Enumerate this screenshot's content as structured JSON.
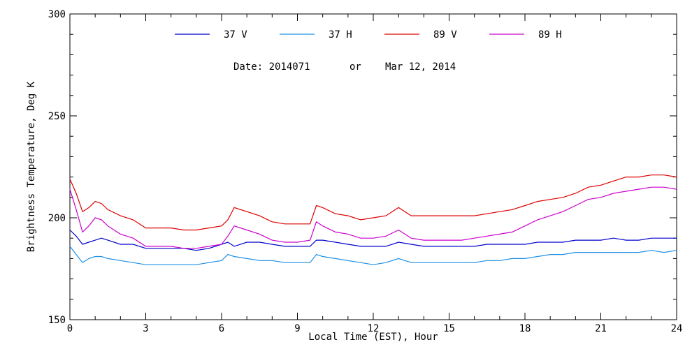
{
  "chart_data": {
    "type": "line",
    "xlabel": "Local Time (EST), Hour",
    "ylabel": "Brightness Temperature, Deg K",
    "xlim": [
      0,
      24
    ],
    "ylim": [
      150,
      300
    ],
    "xticks": [
      0,
      3,
      6,
      9,
      12,
      15,
      18,
      21,
      24
    ],
    "yticks": [
      150,
      200,
      250,
      300
    ],
    "grid": false,
    "legend_position": "top-center",
    "annotation": {
      "date_label": "Date: 2014071",
      "or_label": "or",
      "date_text": "Mar 12, 2014"
    },
    "x": [
      0,
      0.25,
      0.5,
      0.75,
      1,
      1.25,
      1.5,
      2,
      2.5,
      3,
      3.5,
      4,
      4.5,
      5,
      5.5,
      6,
      6.25,
      6.5,
      7,
      7.5,
      8,
      8.5,
      9,
      9.5,
      9.75,
      10,
      10.5,
      11,
      11.5,
      12,
      12.5,
      13,
      13.5,
      14,
      14.5,
      15,
      15.5,
      16,
      16.5,
      17,
      17.5,
      18,
      18.5,
      19,
      19.5,
      20,
      20.5,
      21,
      21.5,
      22,
      22.5,
      23,
      23.5,
      24
    ],
    "series": [
      {
        "name": "37 V",
        "color": "#0000cc",
        "values": [
          194,
          191,
          187,
          188,
          189,
          190,
          189,
          187,
          187,
          185,
          185,
          185,
          185,
          184,
          185,
          187,
          188,
          186,
          188,
          188,
          187,
          186,
          186,
          186,
          189,
          189,
          188,
          187,
          186,
          186,
          186,
          188,
          187,
          186,
          186,
          186,
          186,
          186,
          187,
          187,
          187,
          187,
          188,
          188,
          188,
          189,
          189,
          189,
          190,
          189,
          189,
          190,
          190,
          190
        ]
      },
      {
        "name": "37 H",
        "color": "#1e90e6",
        "values": [
          186,
          182,
          178,
          180,
          181,
          181,
          180,
          179,
          178,
          177,
          177,
          177,
          177,
          177,
          178,
          179,
          182,
          181,
          180,
          179,
          179,
          178,
          178,
          178,
          182,
          181,
          180,
          179,
          178,
          177,
          178,
          180,
          178,
          178,
          178,
          178,
          178,
          178,
          179,
          179,
          180,
          180,
          181,
          182,
          182,
          183,
          183,
          183,
          183,
          183,
          183,
          184,
          183,
          184
        ]
      },
      {
        "name": "89 V",
        "color": "#dd0000",
        "values": [
          219,
          212,
          203,
          205,
          208,
          207,
          204,
          201,
          199,
          195,
          195,
          195,
          194,
          194,
          195,
          196,
          199,
          205,
          203,
          201,
          198,
          197,
          197,
          197,
          206,
          205,
          202,
          201,
          199,
          200,
          201,
          205,
          201,
          201,
          201,
          201,
          201,
          201,
          202,
          203,
          204,
          206,
          208,
          209,
          210,
          212,
          215,
          216,
          218,
          220,
          220,
          221,
          221,
          220
        ]
      },
      {
        "name": "89 H",
        "color": "#cc00cc",
        "values": [
          214,
          204,
          193,
          196,
          200,
          199,
          196,
          192,
          190,
          186,
          186,
          186,
          185,
          185,
          186,
          187,
          191,
          196,
          194,
          192,
          189,
          188,
          188,
          189,
          198,
          196,
          193,
          192,
          190,
          190,
          191,
          194,
          190,
          189,
          189,
          189,
          189,
          190,
          191,
          192,
          193,
          196,
          199,
          201,
          203,
          206,
          209,
          210,
          212,
          213,
          214,
          215,
          215,
          214
        ]
      }
    ]
  }
}
